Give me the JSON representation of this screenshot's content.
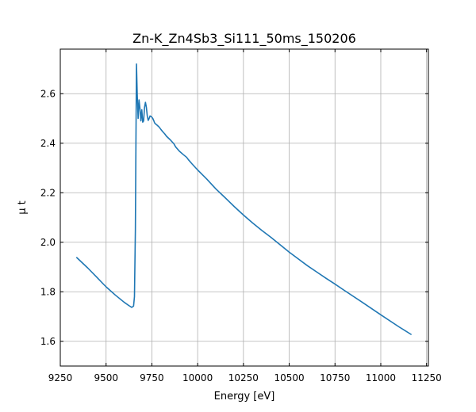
{
  "chart_data": {
    "type": "line",
    "title": "Zn-K_Zn4Sb3_Si111_50ms_150206",
    "xlabel": "Energy [eV]",
    "ylabel": "μ t",
    "xlim": [
      9250,
      11260
    ],
    "ylim": [
      1.5,
      2.78
    ],
    "xticks": [
      9250,
      9500,
      9750,
      10000,
      10250,
      10500,
      10750,
      11000,
      11250
    ],
    "yticks": [
      1.6,
      1.8,
      2.0,
      2.2,
      2.4,
      2.6
    ],
    "xtick_labels": [
      "9250",
      "9500",
      "9750",
      "10000",
      "10250",
      "10500",
      "10750",
      "11000",
      "11250"
    ],
    "ytick_labels": [
      "1.6",
      "1.8",
      "2.0",
      "2.2",
      "2.4",
      "2.6"
    ],
    "grid": true,
    "series": [
      {
        "color": "#1f77b4",
        "x": [
          9340,
          9400,
          9450,
          9500,
          9550,
          9600,
          9625,
          9640,
          9650,
          9655,
          9660,
          9663,
          9666,
          9670,
          9675,
          9680,
          9685,
          9690,
          9695,
          9700,
          9705,
          9710,
          9715,
          9720,
          9725,
          9730,
          9735,
          9740,
          9745,
          9750,
          9755,
          9760,
          9765,
          9770,
          9780,
          9790,
          9800,
          9810,
          9820,
          9830,
          9850,
          9870,
          9880,
          9900,
          9920,
          9940,
          9950,
          9970,
          10000,
          10050,
          10100,
          10150,
          10200,
          10250,
          10300,
          10350,
          10400,
          10500,
          10600,
          10650,
          10700,
          10750,
          10800,
          10900,
          11000,
          11100,
          11165
        ],
        "y": [
          1.938,
          1.896,
          1.858,
          1.82,
          1.787,
          1.757,
          1.744,
          1.737,
          1.742,
          1.78,
          2.05,
          2.4,
          2.72,
          2.6,
          2.5,
          2.575,
          2.54,
          2.49,
          2.535,
          2.485,
          2.49,
          2.545,
          2.565,
          2.545,
          2.51,
          2.492,
          2.5,
          2.51,
          2.508,
          2.505,
          2.5,
          2.492,
          2.482,
          2.478,
          2.472,
          2.465,
          2.455,
          2.446,
          2.438,
          2.428,
          2.414,
          2.398,
          2.385,
          2.368,
          2.355,
          2.343,
          2.333,
          2.316,
          2.292,
          2.255,
          2.215,
          2.18,
          2.144,
          2.11,
          2.078,
          2.048,
          2.02,
          1.96,
          1.905,
          1.88,
          1.855,
          1.831,
          1.806,
          1.757,
          1.707,
          1.658,
          1.628
        ]
      }
    ]
  }
}
